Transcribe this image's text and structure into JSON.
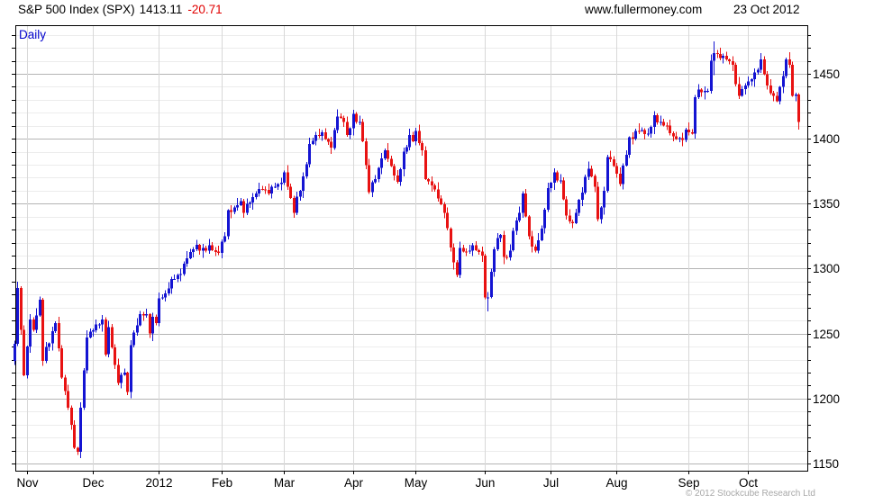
{
  "header": {
    "title": "S&P 500 Index (SPX)",
    "price": "1413.11",
    "change": "-20.71",
    "website": "www.fullermoney.com",
    "date": "23 Oct 2012"
  },
  "chart": {
    "timeframe": "Daily",
    "copyright": "© 2012 Stockcube Research Ltd"
  },
  "chart_data": {
    "type": "candlestick",
    "title": "S&P 500 Index (SPX) daily bars, late Oct 2011 - 23 Oct 2012",
    "legend_position": "none",
    "grid": "on",
    "up_color": "#1414d2",
    "down_color": "#e81212",
    "minor_grid_color": "#ececec",
    "major_grid_color": "#b4b4b4",
    "month_grid_color": "#d8d8d8",
    "x_axis": {
      "labels": [
        "Nov",
        "Dec",
        "2012",
        "Feb",
        "Mar",
        "Apr",
        "May",
        "Jun",
        "Jul",
        "Aug",
        "Sep",
        "Oct"
      ],
      "month_start_day_index": [
        4,
        25,
        46,
        66,
        86,
        108,
        128,
        150,
        171,
        192,
        215,
        234
      ]
    },
    "y_axis": {
      "tick_labels": [
        1450,
        1400,
        1350,
        1300,
        1250,
        1200,
        1150
      ],
      "major_step": 50,
      "minor_step": 10,
      "minor_min": 1150,
      "minor_max": 1480,
      "ylim": [
        1145,
        1487
      ]
    },
    "total_bars": 251,
    "first_open": 1229,
    "anchors_format": "[dayIndex, close] or [dayIndex, close, highOverride, lowOverride]",
    "anchors": [
      [
        0,
        1242
      ],
      [
        1,
        1285
      ],
      [
        2,
        1253
      ],
      [
        3,
        1218
      ],
      [
        5,
        1261
      ],
      [
        6,
        1253
      ],
      [
        8,
        1276
      ],
      [
        9,
        1229
      ],
      [
        12,
        1252
      ],
      [
        13,
        1258
      ],
      [
        15,
        1216
      ],
      [
        17,
        1193
      ],
      [
        19,
        1162
      ],
      [
        20,
        1159
      ],
      [
        21,
        1193
      ],
      [
        23,
        1247
      ],
      [
        26,
        1257
      ],
      [
        28,
        1261
      ],
      [
        29,
        1234
      ],
      [
        30,
        1255
      ],
      [
        32,
        1226
      ],
      [
        33,
        1212
      ],
      [
        35,
        1220
      ],
      [
        36,
        1205
      ],
      [
        37,
        1241
      ],
      [
        40,
        1265
      ],
      [
        42,
        1265
      ],
      [
        43,
        1250
      ],
      [
        44,
        1263
      ],
      [
        45,
        1258
      ],
      [
        46,
        1277
      ],
      [
        48,
        1281
      ],
      [
        50,
        1292
      ],
      [
        53,
        1296
      ],
      [
        55,
        1308
      ],
      [
        57,
        1315
      ],
      [
        60,
        1316
      ],
      [
        62,
        1318
      ],
      [
        64,
        1313
      ],
      [
        65,
        1312
      ],
      [
        67,
        1325
      ],
      [
        68,
        1345
      ],
      [
        70,
        1347
      ],
      [
        72,
        1352
      ],
      [
        73,
        1343
      ],
      [
        75,
        1351
      ],
      [
        77,
        1358
      ],
      [
        79,
        1361
      ],
      [
        81,
        1358
      ],
      [
        83,
        1363
      ],
      [
        85,
        1366
      ],
      [
        86,
        1374
      ],
      [
        89,
        1343
      ],
      [
        92,
        1371
      ],
      [
        94,
        1396
      ],
      [
        96,
        1403
      ],
      [
        98,
        1405
      ],
      [
        101,
        1393
      ],
      [
        103,
        1417
      ],
      [
        105,
        1413
      ],
      [
        106,
        1403
      ],
      [
        107,
        1408
      ],
      [
        108,
        1419
      ],
      [
        110,
        1413
      ],
      [
        111,
        1398
      ],
      [
        113,
        1359
      ],
      [
        115,
        1369
      ],
      [
        117,
        1385
      ],
      [
        118,
        1391
      ],
      [
        120,
        1379
      ],
      [
        122,
        1367
      ],
      [
        124,
        1390
      ],
      [
        126,
        1403
      ],
      [
        127,
        1398
      ],
      [
        128,
        1406
      ],
      [
        130,
        1391
      ],
      [
        131,
        1369
      ],
      [
        133,
        1364
      ],
      [
        135,
        1354
      ],
      [
        137,
        1343
      ],
      [
        138,
        1331
      ],
      [
        140,
        1305
      ],
      [
        141,
        1295
      ],
      [
        142,
        1316
      ],
      [
        144,
        1313
      ],
      [
        146,
        1318
      ],
      [
        148,
        1313
      ],
      [
        149,
        1310
      ],
      [
        150,
        1278
      ],
      [
        151,
        1278,
        1282,
        1267
      ],
      [
        153,
        1315
      ],
      [
        155,
        1326
      ],
      [
        156,
        1309
      ],
      [
        158,
        1314
      ],
      [
        159,
        1329
      ],
      [
        161,
        1343
      ],
      [
        162,
        1358
      ],
      [
        164,
        1325
      ],
      [
        166,
        1314
      ],
      [
        168,
        1331
      ],
      [
        170,
        1362
      ],
      [
        172,
        1374
      ],
      [
        174,
        1368
      ],
      [
        176,
        1341
      ],
      [
        178,
        1335
      ],
      [
        180,
        1353
      ],
      [
        183,
        1377
      ],
      [
        185,
        1363
      ],
      [
        186,
        1338
      ],
      [
        188,
        1360
      ],
      [
        189,
        1386
      ],
      [
        191,
        1379
      ],
      [
        193,
        1365
      ],
      [
        196,
        1401
      ],
      [
        199,
        1406
      ],
      [
        202,
        1404
      ],
      [
        204,
        1418
      ],
      [
        206,
        1413
      ],
      [
        208,
        1410
      ],
      [
        210,
        1402
      ],
      [
        213,
        1399
      ],
      [
        214,
        1407
      ],
      [
        215,
        1405
      ],
      [
        216,
        1404
      ],
      [
        217,
        1432
      ],
      [
        218,
        1438
      ],
      [
        220,
        1437
      ],
      [
        221,
        1437
      ],
      [
        222,
        1460
      ],
      [
        223,
        1466,
        1475,
        1449
      ],
      [
        225,
        1462
      ],
      [
        227,
        1461
      ],
      [
        229,
        1457
      ],
      [
        230,
        1442
      ],
      [
        231,
        1433
      ],
      [
        233,
        1441
      ],
      [
        234,
        1444
      ],
      [
        236,
        1451
      ],
      [
        238,
        1461
      ],
      [
        240,
        1441
      ],
      [
        242,
        1433
      ],
      [
        243,
        1429
      ],
      [
        244,
        1440
      ],
      [
        246,
        1461
      ],
      [
        247,
        1457
      ],
      [
        248,
        1433
      ],
      [
        249,
        1434
      ],
      [
        250,
        1413,
        1435,
        1407
      ]
    ],
    "synth": {
      "wiggle": [
        2,
        -3,
        4,
        -2,
        1,
        -4,
        3,
        -1,
        2,
        -2,
        5,
        -3,
        1,
        -5,
        3,
        -2
      ],
      "wiggle_scale": 0.6,
      "high_ext": [
        3,
        6,
        2,
        4,
        1,
        5,
        2,
        7,
        3,
        2,
        5,
        1,
        4,
        2,
        6,
        3
      ],
      "low_ext": [
        4,
        2,
        5,
        1,
        3,
        6,
        2,
        3,
        1,
        5,
        2,
        4,
        7,
        2,
        3,
        1
      ],
      "ext_scale": 0.8
    }
  }
}
